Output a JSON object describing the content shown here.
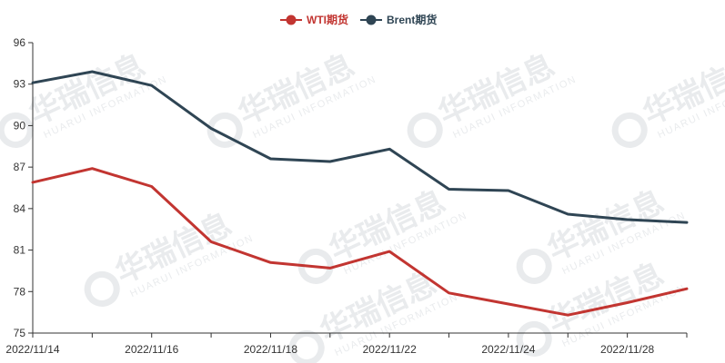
{
  "chart_data": {
    "type": "line",
    "x": [
      "2022/11/14",
      "2022/11/15",
      "2022/11/16",
      "2022/11/17",
      "2022/11/18",
      "2022/11/21",
      "2022/11/22",
      "2022/11/23",
      "2022/11/24",
      "2022/11/25",
      "2022/11/28",
      "2022/11/29"
    ],
    "x_tick_labels": [
      "2022/11/14",
      "2022/11/16",
      "2022/11/18",
      "2022/11/22",
      "2022/11/24",
      "2022/11/28"
    ],
    "series": [
      {
        "name": "WTI期货",
        "color": "#c23531",
        "values": [
          85.9,
          86.9,
          85.6,
          81.6,
          80.1,
          79.7,
          80.9,
          77.9,
          77.1,
          76.3,
          77.2,
          78.2
        ]
      },
      {
        "name": "Brent期货",
        "color": "#2f4554",
        "values": [
          93.1,
          93.9,
          92.9,
          89.8,
          87.6,
          87.4,
          88.3,
          85.4,
          85.3,
          83.6,
          83.2,
          83.0
        ]
      }
    ],
    "ylim": [
      75,
      96
    ],
    "y_ticks": [
      75,
      78,
      81,
      84,
      87,
      90,
      93,
      96
    ],
    "title": "",
    "xlabel": "",
    "ylabel": "",
    "legend_position": "top-center",
    "grid": false,
    "watermark_text": "华瑞信息",
    "watermark_subtext": "HUARUI INFORMATION"
  }
}
